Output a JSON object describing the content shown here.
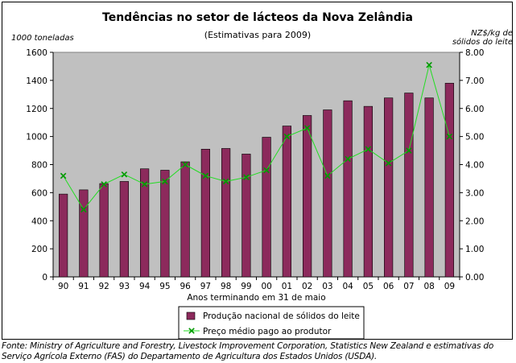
{
  "chart_data": {
    "type": "bar+line",
    "title": "Tendências no setor de lácteos da Nova Zelândia",
    "subtitle": "(Estimativas para 2009)",
    "left_axis_label": "1000 toneladas",
    "right_axis_label_line1": "NZ$/kg de",
    "right_axis_label_line2": "sólidos do leite",
    "xlabel": "Anos terminando em 31 de maio",
    "categories": [
      "90",
      "91",
      "92",
      "93",
      "94",
      "95",
      "96",
      "97",
      "98",
      "99",
      "00",
      "01",
      "02",
      "03",
      "04",
      "05",
      "06",
      "07",
      "08",
      "09"
    ],
    "left_ylim": [
      0,
      1600
    ],
    "left_ticks": [
      "0",
      "200",
      "400",
      "600",
      "800",
      "1000",
      "1200",
      "1400",
      "1600"
    ],
    "right_ylim": [
      0,
      8
    ],
    "right_ticks": [
      "0.00",
      "1.00",
      "2.00",
      "3.00",
      "4.00",
      "5.00",
      "6.00",
      "7.00",
      "8.00"
    ],
    "series": [
      {
        "name": "Produção nacional de sólidos do leite",
        "kind": "bar",
        "axis": "left",
        "color": "#8c2a5c",
        "values": [
          590,
          620,
          665,
          680,
          770,
          760,
          820,
          910,
          915,
          875,
          995,
          1075,
          1150,
          1190,
          1255,
          1215,
          1275,
          1310,
          1275,
          1380
        ]
      },
      {
        "name": "Preço médio pago ao produtor",
        "kind": "line",
        "axis": "right",
        "color": "#22dd22",
        "values": [
          3.6,
          2.4,
          3.3,
          3.65,
          3.3,
          3.4,
          4.0,
          3.6,
          3.4,
          3.55,
          3.8,
          5.0,
          5.3,
          3.6,
          4.2,
          4.55,
          4.05,
          4.5,
          7.55,
          5.0
        ]
      }
    ],
    "plot_background": "#c0c0c0"
  },
  "source_note": "Fonte: Ministry of Agriculture and Forestry, Livestock Improvement Corporation, Statistics New Zealand e estimativas do Serviço Agrícola Externo (FAS) do Departamento de Agricultura dos Estados Unidos (USDA)."
}
